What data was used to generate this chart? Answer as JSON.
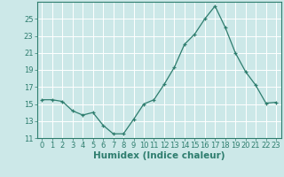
{
  "x": [
    0,
    1,
    2,
    3,
    4,
    5,
    6,
    7,
    8,
    9,
    10,
    11,
    12,
    13,
    14,
    15,
    16,
    17,
    18,
    19,
    20,
    21,
    22,
    23
  ],
  "y": [
    15.5,
    15.5,
    15.3,
    14.2,
    13.7,
    14.0,
    12.5,
    11.5,
    11.5,
    13.2,
    15.0,
    15.5,
    17.3,
    19.3,
    22.0,
    23.2,
    25.0,
    26.5,
    24.0,
    21.0,
    18.8,
    17.2,
    15.1,
    15.2
  ],
  "line_color": "#2e7d6e",
  "marker": "+",
  "bg_color": "#cce8e8",
  "grid_color": "#ffffff",
  "axis_label_color": "#2e7d6e",
  "tick_color": "#2e7d6e",
  "xlabel": "Humidex (Indice chaleur)",
  "ylim": [
    11,
    27
  ],
  "yticks": [
    11,
    13,
    15,
    17,
    19,
    21,
    23,
    25
  ],
  "xticks": [
    0,
    1,
    2,
    3,
    4,
    5,
    6,
    7,
    8,
    9,
    10,
    11,
    12,
    13,
    14,
    15,
    16,
    17,
    18,
    19,
    20,
    21,
    22,
    23
  ],
  "font_size": 6,
  "xlabel_size": 7.5
}
